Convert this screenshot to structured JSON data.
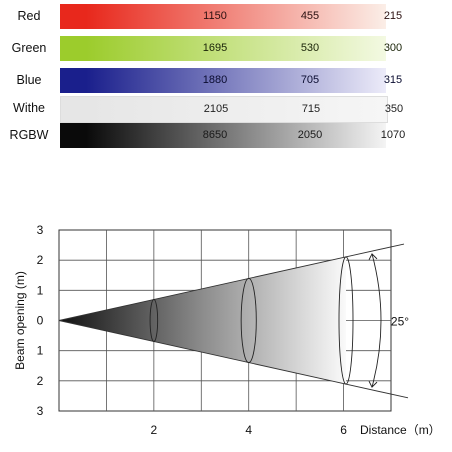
{
  "table": {
    "rows": [
      {
        "label": "Red",
        "values": [
          "1150",
          "455",
          "215"
        ],
        "colors": [
          "#e8281c",
          "#fbeee7"
        ],
        "text_color": "#2a1010"
      },
      {
        "label": "Green",
        "values": [
          "1695",
          "530",
          "300"
        ],
        "colors": [
          "#9ccc2c",
          "#f3f9e2"
        ],
        "text_color": "#1a2408"
      },
      {
        "label": "Blue",
        "values": [
          "1880",
          "705",
          "315"
        ],
        "colors": [
          "#1a1f8c",
          "#ecebf9"
        ],
        "text_color": "#0a0c30"
      },
      {
        "label": "Withe",
        "values": [
          "2105",
          "715",
          "350"
        ],
        "colors": [
          "#e6e6e6",
          "#f6f6f6"
        ],
        "text_color": "#222222"
      },
      {
        "label": "RGBW",
        "values": [
          "8650",
          "2050",
          "1070"
        ],
        "colors": [
          "#0a0a0a",
          "#f4f4f4"
        ],
        "text_color": "#1a1a1a"
      }
    ]
  },
  "chart": {
    "y_axis_label": "Beam opening (m)",
    "x_axis_label": "Distance（m）",
    "y_tick_labels": [
      "3",
      "2",
      "1",
      "0",
      "1",
      "2",
      "3"
    ],
    "x_tick_labels": [
      "2",
      "4",
      "6"
    ],
    "angle_label": "25°"
  },
  "chart_data": {
    "type": "diagram",
    "x": [
      0,
      2,
      4,
      6
    ],
    "y_range": [
      -3,
      3
    ],
    "x_range": [
      0,
      6
    ],
    "beam_angle_deg": 25,
    "grid": true
  }
}
